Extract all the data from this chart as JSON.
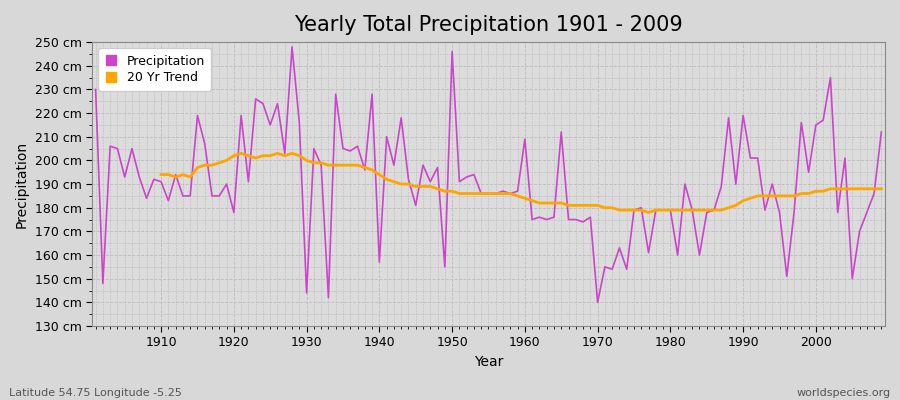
{
  "title": "Yearly Total Precipitation 1901 - 2009",
  "xlabel": "Year",
  "ylabel": "Precipitation",
  "subtitle": "Latitude 54.75 Longitude -5.25",
  "watermark": "worldspecies.org",
  "years": [
    1901,
    1902,
    1903,
    1904,
    1905,
    1906,
    1907,
    1908,
    1909,
    1910,
    1911,
    1912,
    1913,
    1914,
    1915,
    1916,
    1917,
    1918,
    1919,
    1920,
    1921,
    1922,
    1923,
    1924,
    1925,
    1926,
    1927,
    1928,
    1929,
    1930,
    1931,
    1932,
    1933,
    1934,
    1935,
    1936,
    1937,
    1938,
    1939,
    1940,
    1941,
    1942,
    1943,
    1944,
    1945,
    1946,
    1947,
    1948,
    1949,
    1950,
    1951,
    1952,
    1953,
    1954,
    1955,
    1956,
    1957,
    1958,
    1959,
    1960,
    1961,
    1962,
    1963,
    1964,
    1965,
    1966,
    1967,
    1968,
    1969,
    1970,
    1971,
    1972,
    1973,
    1974,
    1975,
    1976,
    1977,
    1978,
    1979,
    1980,
    1981,
    1982,
    1983,
    1984,
    1985,
    1986,
    1987,
    1988,
    1989,
    1990,
    1991,
    1992,
    1993,
    1994,
    1995,
    1996,
    1997,
    1998,
    1999,
    2000,
    2001,
    2002,
    2003,
    2004,
    2005,
    2006,
    2007,
    2008,
    2009
  ],
  "precipitation": [
    230,
    148,
    206,
    205,
    193,
    205,
    193,
    184,
    192,
    191,
    183,
    194,
    185,
    185,
    219,
    207,
    185,
    185,
    190,
    178,
    219,
    191,
    226,
    224,
    215,
    224,
    203,
    248,
    216,
    144,
    205,
    198,
    142,
    228,
    205,
    204,
    206,
    196,
    228,
    157,
    210,
    198,
    218,
    192,
    181,
    198,
    191,
    197,
    155,
    246,
    191,
    193,
    194,
    186,
    186,
    186,
    187,
    186,
    187,
    209,
    175,
    176,
    175,
    176,
    212,
    175,
    175,
    174,
    176,
    140,
    155,
    154,
    163,
    154,
    179,
    180,
    161,
    179,
    179,
    179,
    160,
    190,
    179,
    160,
    178,
    179,
    189,
    218,
    190,
    219,
    201,
    201,
    179,
    190,
    178,
    151,
    178,
    216,
    195,
    215,
    217,
    235,
    178,
    201,
    150,
    170,
    178,
    186,
    212
  ],
  "trend": [
    null,
    null,
    null,
    null,
    null,
    null,
    null,
    null,
    null,
    194,
    194,
    193,
    194,
    193,
    197,
    198,
    198,
    199,
    200,
    202,
    203,
    202,
    201,
    202,
    202,
    203,
    202,
    203,
    202,
    200,
    199,
    199,
    198,
    198,
    198,
    198,
    198,
    197,
    196,
    194,
    192,
    191,
    190,
    190,
    189,
    189,
    189,
    188,
    187,
    187,
    186,
    186,
    186,
    186,
    186,
    186,
    186,
    186,
    185,
    184,
    183,
    182,
    182,
    182,
    182,
    181,
    181,
    181,
    181,
    181,
    180,
    180,
    179,
    179,
    179,
    179,
    178,
    179,
    179,
    179,
    179,
    179,
    179,
    179,
    179,
    179,
    179,
    180,
    181,
    183,
    184,
    185,
    185,
    185,
    185,
    185,
    185,
    186,
    186,
    187,
    187,
    188,
    188,
    188,
    188,
    188,
    188,
    188,
    188
  ],
  "precip_color": "#CC44CC",
  "trend_color": "#FFA500",
  "bg_color": "#D8D8D8",
  "plot_bg_color": "#DCDCDC",
  "grid_color": "#BBBBBB",
  "ylim": [
    130,
    250
  ],
  "ytick_step": 10,
  "xtick_values": [
    1910,
    1920,
    1930,
    1940,
    1950,
    1960,
    1970,
    1980,
    1990,
    2000
  ],
  "title_fontsize": 15,
  "axis_label_fontsize": 10,
  "tick_fontsize": 9,
  "legend_fontsize": 9
}
